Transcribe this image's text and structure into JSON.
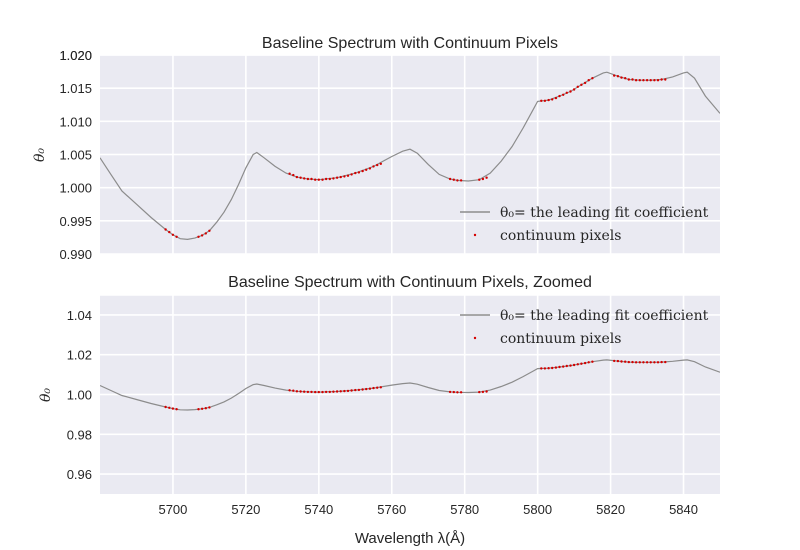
{
  "chart_data": [
    {
      "type": "line",
      "title": "Baseline Spectrum with Continuum Pixels",
      "xlabel": "",
      "ylabel": "θ₀",
      "xlim": [
        5680,
        5850
      ],
      "ylim": [
        0.99,
        1.02
      ],
      "xticks": [
        5700,
        5720,
        5740,
        5760,
        5780,
        5800,
        5820,
        5840
      ],
      "yticks": [
        0.99,
        0.995,
        1.0,
        1.005,
        1.01,
        1.015,
        1.02
      ],
      "ytick_labels": [
        "0.990",
        "0.995",
        "1.000",
        "1.005",
        "1.010",
        "1.015",
        "1.020"
      ],
      "show_xtick_labels": false,
      "grid": true,
      "legend_position": "lower-right",
      "legend": [
        "θ₀= the leading fit coefficient",
        "continuum pixels"
      ]
    },
    {
      "type": "line",
      "title": "Baseline Spectrum with Continuum Pixels, Zoomed",
      "xlabel": "Wavelength λ(Å)",
      "ylabel": "θ₀",
      "xlim": [
        5680,
        5850
      ],
      "ylim": [
        0.95,
        1.05
      ],
      "xticks": [
        5700,
        5720,
        5740,
        5760,
        5780,
        5800,
        5820,
        5840
      ],
      "yticks": [
        0.96,
        0.98,
        1.0,
        1.02,
        1.04
      ],
      "ytick_labels": [
        "0.96",
        "0.98",
        "1.00",
        "1.02",
        "1.04"
      ],
      "show_xtick_labels": true,
      "grid": true,
      "legend_position": "upper-right",
      "legend": [
        "θ₀= the leading fit coefficient",
        "continuum pixels"
      ]
    }
  ],
  "series": {
    "spectrum": {
      "name": "θ₀= the leading fit coefficient",
      "color": "#8c8c8c",
      "x": [
        5680,
        5683,
        5686,
        5690,
        5694,
        5698,
        5700,
        5702,
        5704,
        5706,
        5708,
        5710,
        5712,
        5714,
        5716,
        5718,
        5720,
        5722,
        5723,
        5725,
        5728,
        5731,
        5734,
        5737,
        5740,
        5745,
        5750,
        5755,
        5760,
        5763,
        5765,
        5767,
        5770,
        5773,
        5776,
        5778,
        5781,
        5784,
        5787,
        5790,
        5793,
        5796,
        5799,
        5800,
        5803,
        5806,
        5809,
        5812,
        5815,
        5818,
        5819,
        5822,
        5825,
        5828,
        5831,
        5834,
        5837,
        5840,
        5841,
        5843,
        5846,
        5850
      ],
      "y": [
        1.0045,
        1.002,
        0.9995,
        0.9975,
        0.9955,
        0.9937,
        0.9929,
        0.9923,
        0.9922,
        0.9924,
        0.9928,
        0.9935,
        0.9948,
        0.9963,
        0.9982,
        1.0005,
        1.003,
        1.005,
        1.0053,
        1.0045,
        1.0032,
        1.0022,
        1.0016,
        1.0013,
        1.0012,
        1.0015,
        1.0022,
        1.0032,
        1.0047,
        1.0055,
        1.0058,
        1.0052,
        1.0035,
        1.002,
        1.0013,
        1.0011,
        1.001,
        1.0012,
        1.0022,
        1.004,
        1.0062,
        1.009,
        1.012,
        1.013,
        1.0132,
        1.0138,
        1.0145,
        1.0155,
        1.0165,
        1.0173,
        1.0174,
        1.0168,
        1.0163,
        1.0162,
        1.0162,
        1.0163,
        1.0167,
        1.0173,
        1.0174,
        1.0165,
        1.0138,
        1.0112
      ]
    },
    "continuum": {
      "name": "continuum pixels",
      "color": "#d40000",
      "x": [
        5698,
        5699,
        5700,
        5701,
        5707,
        5708,
        5709,
        5710,
        5732,
        5733,
        5734,
        5735,
        5736,
        5737,
        5738,
        5739,
        5740,
        5741,
        5742,
        5743,
        5744,
        5745,
        5746,
        5747,
        5748,
        5749,
        5750,
        5751,
        5752,
        5753,
        5754,
        5755,
        5756,
        5757,
        5776,
        5777,
        5778,
        5779,
        5784,
        5785,
        5786,
        5801,
        5802,
        5803,
        5804,
        5805,
        5806,
        5807,
        5808,
        5809,
        5810,
        5811,
        5812,
        5813,
        5814,
        5815,
        5821,
        5822,
        5823,
        5824,
        5825,
        5826,
        5827,
        5828,
        5829,
        5830,
        5831,
        5832,
        5833,
        5834,
        5835
      ],
      "y": [
        0.9937,
        0.9933,
        0.9929,
        0.9926,
        0.9926,
        0.9928,
        0.9931,
        0.9935,
        1.0021,
        1.0019,
        1.0016,
        1.0015,
        1.0014,
        1.0013,
        1.0013,
        1.0012,
        1.0012,
        1.0012,
        1.0013,
        1.0013,
        1.0014,
        1.0015,
        1.0016,
        1.0017,
        1.0018,
        1.002,
        1.0022,
        1.0023,
        1.0025,
        1.0027,
        1.0029,
        1.0032,
        1.0034,
        1.0036,
        1.0013,
        1.0012,
        1.0011,
        1.0011,
        1.0012,
        1.0013,
        1.0015,
        1.0131,
        1.0131,
        1.0132,
        1.0133,
        1.0135,
        1.0138,
        1.014,
        1.0143,
        1.0145,
        1.0148,
        1.0152,
        1.0155,
        1.0158,
        1.0162,
        1.0165,
        1.0169,
        1.0168,
        1.0166,
        1.0165,
        1.0163,
        1.0163,
        1.0162,
        1.0162,
        1.0162,
        1.0162,
        1.0162,
        1.0162,
        1.0162,
        1.0163,
        1.0163
      ]
    }
  }
}
